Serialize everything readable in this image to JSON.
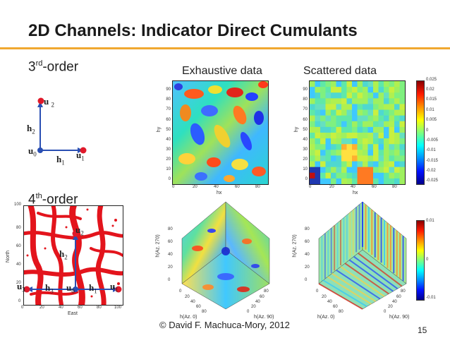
{
  "slide": {
    "title": "2D Channels: Indicator Direct Cumulants",
    "accent_color": "#f0a830",
    "page_number": "15",
    "footer": "© David F. Machuca-Mory, 2012"
  },
  "sections": {
    "third_order": {
      "prefix": "3",
      "sup": "rd",
      "suffix": "-order"
    },
    "fourth_order": {
      "prefix": "4",
      "sup": "th",
      "suffix": "-order"
    }
  },
  "headers": {
    "exhaustive": "Exhaustive data",
    "scattered": "Scattered data"
  },
  "third_diagram": {
    "labels": [
      {
        "base": "u",
        "sub": "2"
      },
      {
        "base": "h",
        "sub": "2"
      },
      {
        "base": "u",
        "sub": "0"
      },
      {
        "base": "h",
        "sub": "1"
      },
      {
        "base": "u",
        "sub": "1"
      }
    ]
  },
  "fourth_diagram": {
    "labels": [
      {
        "base": "u",
        "sub": "2"
      },
      {
        "base": "h",
        "sub": "2"
      },
      {
        "base": "u",
        "sub": "3"
      },
      {
        "base": "h",
        "sub": "3"
      },
      {
        "base": "u",
        "sub": "0"
      },
      {
        "base": "h",
        "sub": "1"
      },
      {
        "base": "u",
        "sub": "1"
      }
    ],
    "x_label": "East",
    "y_label": "North",
    "x_ticks": [
      "0",
      "20",
      "40",
      "60",
      "80",
      "100"
    ],
    "y_ticks": [
      "100",
      "80",
      "60",
      "40",
      "20",
      "0"
    ]
  },
  "heatmaps": {
    "x_label": "hx",
    "y_label": "hy",
    "x_ticks": [
      "0",
      "20",
      "40",
      "60",
      "80"
    ],
    "y_ticks": [
      "90",
      "80",
      "70",
      "60",
      "50",
      "40",
      "30",
      "20",
      "10",
      "0"
    ]
  },
  "colorbar": {
    "ticks": [
      "0.025",
      "0.02",
      "0.015",
      "0.01",
      "0.005",
      "0",
      "-0.005",
      "-0.01",
      "-0.015",
      "-0.02",
      "-0.025"
    ]
  },
  "cubes": {
    "x_label": "h(Az. 0)",
    "y_label": "h(Az. 90)",
    "z_label": "h(Az. 270)",
    "z_ticks": [
      "80",
      "60",
      "40",
      "20",
      "0"
    ],
    "x_ticks": [
      "0",
      "20",
      "40",
      "60",
      "80"
    ],
    "y_ticks": [
      "0",
      "20",
      "40",
      "60",
      "80"
    ]
  },
  "colorbar2": {
    "ticks": [
      "0.01",
      "0",
      "-0.01"
    ]
  }
}
